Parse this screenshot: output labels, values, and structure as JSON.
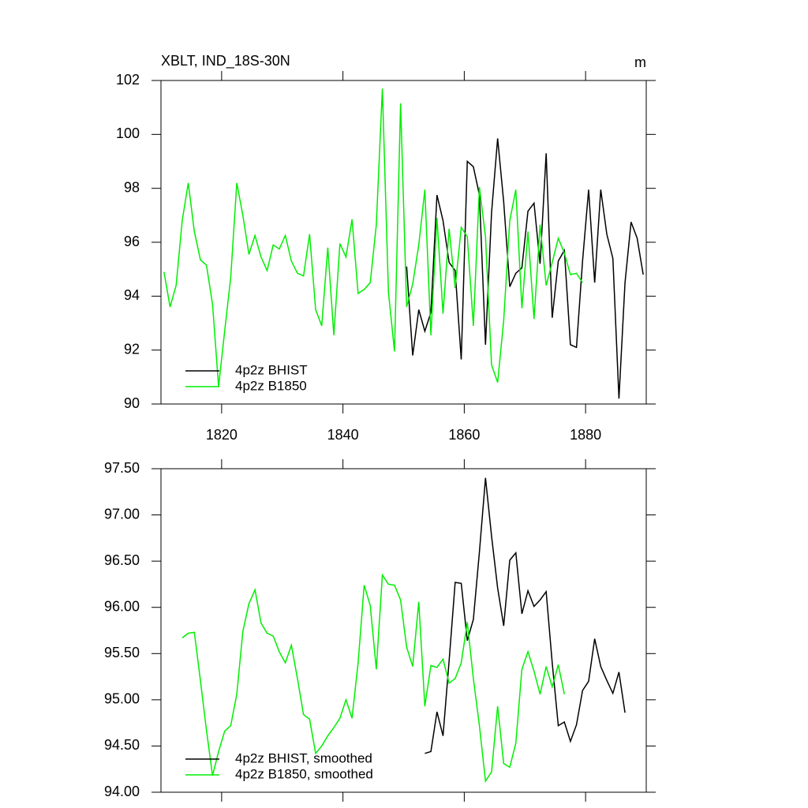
{
  "chart_data": [
    {
      "type": "line",
      "title": "XBLT, IND_18S-30N",
      "units": "m",
      "x": [
        1810.5,
        1811.5,
        1812.5,
        1813.5,
        1814.5,
        1815.5,
        1816.5,
        1817.5,
        1818.5,
        1819.5,
        1820.5,
        1821.5,
        1822.5,
        1823.5,
        1824.5,
        1825.5,
        1826.5,
        1827.5,
        1828.5,
        1829.5,
        1830.5,
        1831.5,
        1832.5,
        1833.5,
        1834.5,
        1835.5,
        1836.5,
        1837.5,
        1838.5,
        1839.5,
        1840.5,
        1841.5,
        1842.5,
        1843.5,
        1844.5,
        1845.5,
        1846.5,
        1847.5,
        1848.5,
        1849.5,
        1850.5,
        1851.5,
        1852.5,
        1853.5,
        1854.5,
        1855.5,
        1856.5,
        1857.5,
        1858.5,
        1859.5,
        1860.5,
        1861.5,
        1862.5,
        1863.5,
        1864.5,
        1865.5,
        1866.5,
        1867.5,
        1868.5,
        1869.5,
        1870.5,
        1871.5,
        1872.5,
        1873.5,
        1874.5,
        1875.5,
        1876.5,
        1877.5,
        1878.5,
        1879.5,
        1880.5,
        1881.5,
        1882.5,
        1883.5,
        1884.5,
        1885.5,
        1886.5,
        1887.5,
        1888.5,
        1889.5
      ],
      "series": [
        {
          "name": "4p2z BHIST",
          "color": "#000000",
          "values": [
            null,
            null,
            null,
            null,
            null,
            null,
            null,
            null,
            null,
            null,
            null,
            null,
            null,
            null,
            null,
            null,
            null,
            null,
            null,
            null,
            null,
            null,
            null,
            null,
            null,
            null,
            null,
            null,
            null,
            null,
            null,
            null,
            null,
            null,
            null,
            null,
            null,
            null,
            null,
            null,
            95.1,
            91.8,
            93.5,
            92.7,
            93.4,
            97.75,
            96.8,
            95.25,
            94.95,
            91.65,
            99.0,
            98.8,
            97.75,
            92.2,
            97.1,
            99.85,
            97.5,
            94.35,
            94.85,
            95.05,
            97.15,
            97.45,
            95.2,
            99.3,
            93.2,
            95.3,
            95.7,
            92.2,
            92.1,
            95.3,
            97.95,
            94.5,
            97.95,
            96.3,
            95.4,
            90.2,
            94.5,
            96.75,
            96.15,
            94.8
          ]
        },
        {
          "name": "4p2z B1850",
          "color": "#00ee00",
          "values": [
            94.9,
            93.6,
            94.4,
            96.8,
            98.2,
            96.4,
            95.35,
            95.15,
            93.7,
            90.65,
            92.7,
            94.7,
            98.2,
            97.0,
            95.55,
            96.25,
            95.45,
            94.95,
            95.9,
            95.75,
            96.25,
            95.3,
            94.85,
            94.75,
            96.3,
            93.5,
            92.9,
            95.8,
            92.55,
            95.95,
            95.45,
            96.85,
            94.1,
            94.25,
            94.5,
            96.65,
            101.7,
            94.15,
            91.95,
            101.15,
            93.6,
            94.45,
            95.9,
            97.95,
            92.55,
            96.9,
            93.35,
            96.5,
            94.3,
            96.55,
            96.2,
            92.9,
            98.05,
            96.2,
            91.45,
            90.8,
            93.1,
            96.8,
            97.95,
            93.55,
            96.4,
            93.15,
            96.65,
            94.4,
            95.25,
            96.15,
            95.6,
            94.8,
            94.85,
            94.5,
            null,
            null,
            null,
            null,
            null,
            null,
            null,
            null,
            null,
            null
          ]
        }
      ],
      "xlim": [
        1810,
        1890
      ],
      "xticks": [
        1820,
        1840,
        1860,
        1880
      ],
      "xtick_labels": true,
      "ylim": [
        90,
        102
      ],
      "yticks": [
        90,
        92,
        94,
        96,
        98,
        100,
        102
      ],
      "legend": "lower left"
    },
    {
      "type": "line",
      "x": [
        1810.5,
        1811.5,
        1812.5,
        1813.5,
        1814.5,
        1815.5,
        1816.5,
        1817.5,
        1818.5,
        1819.5,
        1820.5,
        1821.5,
        1822.5,
        1823.5,
        1824.5,
        1825.5,
        1826.5,
        1827.5,
        1828.5,
        1829.5,
        1830.5,
        1831.5,
        1832.5,
        1833.5,
        1834.5,
        1835.5,
        1836.5,
        1837.5,
        1838.5,
        1839.5,
        1840.5,
        1841.5,
        1842.5,
        1843.5,
        1844.5,
        1845.5,
        1846.5,
        1847.5,
        1848.5,
        1849.5,
        1850.5,
        1851.5,
        1852.5,
        1853.5,
        1854.5,
        1855.5,
        1856.5,
        1857.5,
        1858.5,
        1859.5,
        1860.5,
        1861.5,
        1862.5,
        1863.5,
        1864.5,
        1865.5,
        1866.5,
        1867.5,
        1868.5,
        1869.5,
        1870.5,
        1871.5,
        1872.5,
        1873.5,
        1874.5,
        1875.5,
        1876.5,
        1877.5,
        1878.5,
        1879.5,
        1880.5,
        1881.5,
        1882.5,
        1883.5,
        1884.5,
        1885.5,
        1886.5,
        1887.5,
        1888.5,
        1889.5
      ],
      "series": [
        {
          "name": "4p2z BHIST, smoothed",
          "color": "#000000",
          "values": [
            null,
            null,
            null,
            null,
            null,
            null,
            null,
            null,
            null,
            null,
            null,
            null,
            null,
            null,
            null,
            null,
            null,
            null,
            null,
            null,
            null,
            null,
            null,
            null,
            null,
            null,
            null,
            null,
            null,
            null,
            null,
            null,
            null,
            null,
            null,
            null,
            null,
            null,
            null,
            null,
            null,
            null,
            null,
            94.42,
            94.44,
            94.87,
            94.61,
            95.42,
            96.27,
            96.26,
            95.64,
            95.87,
            96.6,
            97.4,
            96.77,
            96.21,
            95.8,
            96.51,
            96.59,
            95.93,
            96.18,
            96.01,
            96.08,
            96.17,
            95.4,
            94.72,
            94.76,
            94.55,
            94.73,
            95.1,
            95.2,
            95.66,
            95.36,
            95.21,
            95.07,
            95.3,
            94.86,
            null,
            null,
            null
          ]
        },
        {
          "name": "4p2z B1850, smoothed",
          "color": "#00ee00",
          "values": [
            null,
            null,
            null,
            95.67,
            95.72,
            95.73,
            95.21,
            94.67,
            94.18,
            94.44,
            94.66,
            94.72,
            95.06,
            95.74,
            96.04,
            96.19,
            95.83,
            95.72,
            95.69,
            95.52,
            95.4,
            95.59,
            95.23,
            94.84,
            94.79,
            94.42,
            94.5,
            94.61,
            94.7,
            94.8,
            95.0,
            94.8,
            95.4,
            96.24,
            96.02,
            95.33,
            96.35,
            96.25,
            96.24,
            96.08,
            95.57,
            95.36,
            96.06,
            94.93,
            95.37,
            95.35,
            95.44,
            95.18,
            95.23,
            95.4,
            95.84,
            95.23,
            94.72,
            94.12,
            94.22,
            94.93,
            94.31,
            94.27,
            94.53,
            95.33,
            95.52,
            95.31,
            95.06,
            95.36,
            95.14,
            95.38,
            95.06,
            null,
            null,
            null,
            null,
            null,
            null,
            null,
            null,
            null,
            null,
            null,
            null,
            null
          ]
        }
      ],
      "xlim": [
        1810,
        1890
      ],
      "xticks": [
        1820,
        1840,
        1860,
        1880
      ],
      "xtick_labels": false,
      "ylim": [
        94,
        97.5
      ],
      "yticks": [
        {
          "value": 94,
          "label": "94.00"
        },
        {
          "value": 94.5,
          "label": "94.50"
        },
        {
          "value": 95,
          "label": "95.00"
        },
        {
          "value": 95.5,
          "label": "95.50"
        },
        {
          "value": 96,
          "label": "96.00"
        },
        {
          "value": 96.5,
          "label": "96.50"
        },
        {
          "value": 97,
          "label": "97.00"
        },
        {
          "value": 97.5,
          "label": "97.50"
        }
      ],
      "legend": "lower left"
    }
  ]
}
